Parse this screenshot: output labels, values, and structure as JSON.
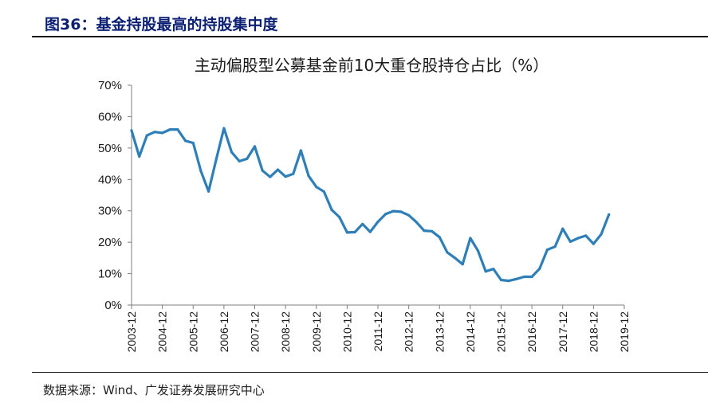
{
  "figure_caption": "图36：基金持股最高的持股集中度",
  "source_note": "数据来源：Wind、广发证券发展研究中心",
  "colors": {
    "line": "#2e7fb8",
    "caption": "#0b1f73",
    "axis": "#7f7f7f"
  },
  "chart_data": {
    "type": "line",
    "title": "主动偏股型公募基金前10大重仓股持仓占比（%）",
    "xlabel": "",
    "ylabel": "",
    "ylim": [
      0,
      70
    ],
    "yticks": [
      "0%",
      "10%",
      "20%",
      "30%",
      "40%",
      "50%",
      "60%",
      "70%"
    ],
    "xticks": [
      "2003-12",
      "2004-12",
      "2005-12",
      "2006-12",
      "2007-12",
      "2008-12",
      "2009-12",
      "2010-12",
      "2011-12",
      "2012-12",
      "2013-12",
      "2014-12",
      "2015-12",
      "2016-12",
      "2017-12",
      "2018-12",
      "2019-12"
    ],
    "grid": false,
    "legend": "none",
    "series": [
      {
        "x": [
          "2003-12",
          "2004-03",
          "2004-06",
          "2004-09",
          "2004-12",
          "2005-03",
          "2005-06",
          "2005-09",
          "2005-12",
          "2006-03",
          "2006-06",
          "2006-09",
          "2006-12",
          "2007-03",
          "2007-06",
          "2007-09",
          "2007-12",
          "2008-03",
          "2008-06",
          "2008-09",
          "2008-12",
          "2009-03",
          "2009-06",
          "2009-09",
          "2009-12",
          "2010-03",
          "2010-06",
          "2010-09",
          "2010-12",
          "2011-03",
          "2011-06",
          "2011-09",
          "2011-12",
          "2012-03",
          "2012-06",
          "2012-09",
          "2012-12",
          "2013-03",
          "2013-06",
          "2013-09",
          "2013-12",
          "2014-03",
          "2014-06",
          "2014-09",
          "2014-12",
          "2015-03",
          "2015-06",
          "2015-09",
          "2015-12",
          "2016-03",
          "2016-06",
          "2016-09",
          "2016-12",
          "2017-03",
          "2017-06",
          "2017-09",
          "2017-12",
          "2018-03",
          "2018-06",
          "2018-09",
          "2018-12",
          "2019-03",
          "2019-06"
        ],
        "values": [
          55.6,
          47.3,
          54.0,
          55.1,
          54.8,
          55.9,
          55.9,
          52.3,
          51.6,
          42.7,
          36.2,
          46.4,
          56.3,
          48.7,
          45.8,
          46.6,
          50.5,
          42.8,
          40.8,
          43.1,
          40.9,
          41.8,
          49.2,
          41.1,
          37.6,
          36.1,
          30.3,
          28.0,
          23.1,
          23.2,
          25.8,
          23.3,
          26.5,
          29.0,
          29.9,
          29.7,
          28.6,
          26.4,
          23.7,
          23.5,
          21.6,
          16.8,
          15.0,
          13.0,
          21.3,
          17.3,
          10.7,
          11.5,
          8.0,
          7.7,
          8.3,
          9.0,
          9.0,
          11.6,
          17.6,
          18.6,
          24.3,
          20.2,
          21.3,
          22.1,
          19.5,
          22.5,
          28.8
        ]
      }
    ]
  }
}
